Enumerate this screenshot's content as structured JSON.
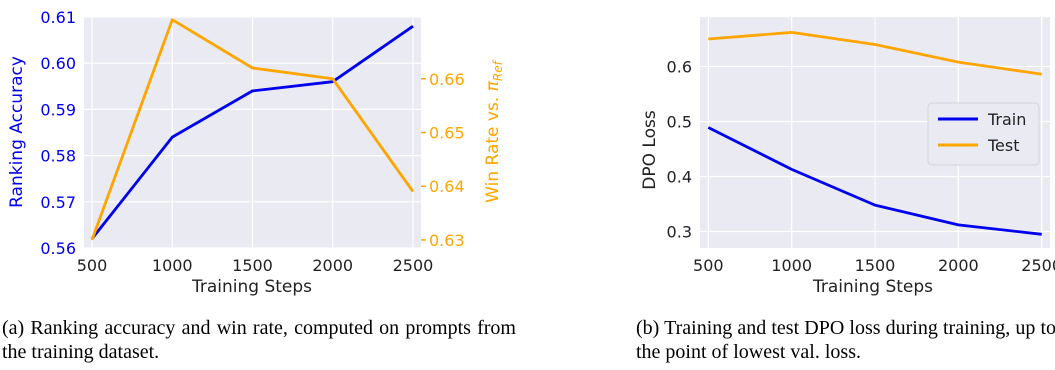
{
  "chart_data": [
    {
      "type": "line",
      "panel": "a",
      "xlabel": "Training Steps",
      "ylabel": "Ranking Accuracy",
      "y2label": "Win Rate vs. π_Ref",
      "x": [
        500,
        1000,
        1500,
        2000,
        2500
      ],
      "xticks": [
        "500",
        "1000",
        "1500",
        "2000",
        "2500"
      ],
      "xlim": [
        450,
        2550
      ],
      "ylim": [
        0.56,
        0.61
      ],
      "yticks": [
        "0.56",
        "0.57",
        "0.58",
        "0.59",
        "0.60",
        "0.61"
      ],
      "y2lim": [
        0.6285,
        0.6715
      ],
      "y2ticks": [
        "0.63",
        "0.64",
        "0.65",
        "0.66"
      ],
      "grid": true,
      "series": [
        {
          "axis": "left",
          "color": "#0000ee",
          "values": [
            0.562,
            0.584,
            0.594,
            0.596,
            0.608
          ]
        },
        {
          "axis": "right",
          "color": "#ffa500",
          "values": [
            0.63,
            0.671,
            0.662,
            0.66,
            0.639
          ]
        }
      ],
      "caption": "(a) Ranking accuracy and win rate, computed on prompts from the training dataset."
    },
    {
      "type": "line",
      "panel": "b",
      "xlabel": "Training Steps",
      "ylabel": "DPO Loss",
      "x": [
        500,
        1000,
        1500,
        2000,
        2500
      ],
      "xticks": [
        "500",
        "1000",
        "1500",
        "2000",
        "2500"
      ],
      "xlim": [
        450,
        2550
      ],
      "ylim": [
        0.27,
        0.69
      ],
      "yticks": [
        "0.3",
        "0.4",
        "0.5",
        "0.6"
      ],
      "grid": true,
      "legend": "center-right",
      "series": [
        {
          "name": "Train",
          "color": "#0000ee",
          "values": [
            0.489,
            0.413,
            0.348,
            0.312,
            0.295
          ]
        },
        {
          "name": "Test",
          "color": "#ffa500",
          "values": [
            0.65,
            0.662,
            0.64,
            0.608,
            0.586
          ]
        }
      ],
      "caption": "(b) Training and test DPO loss during training, up to the point of lowest val. loss."
    }
  ]
}
